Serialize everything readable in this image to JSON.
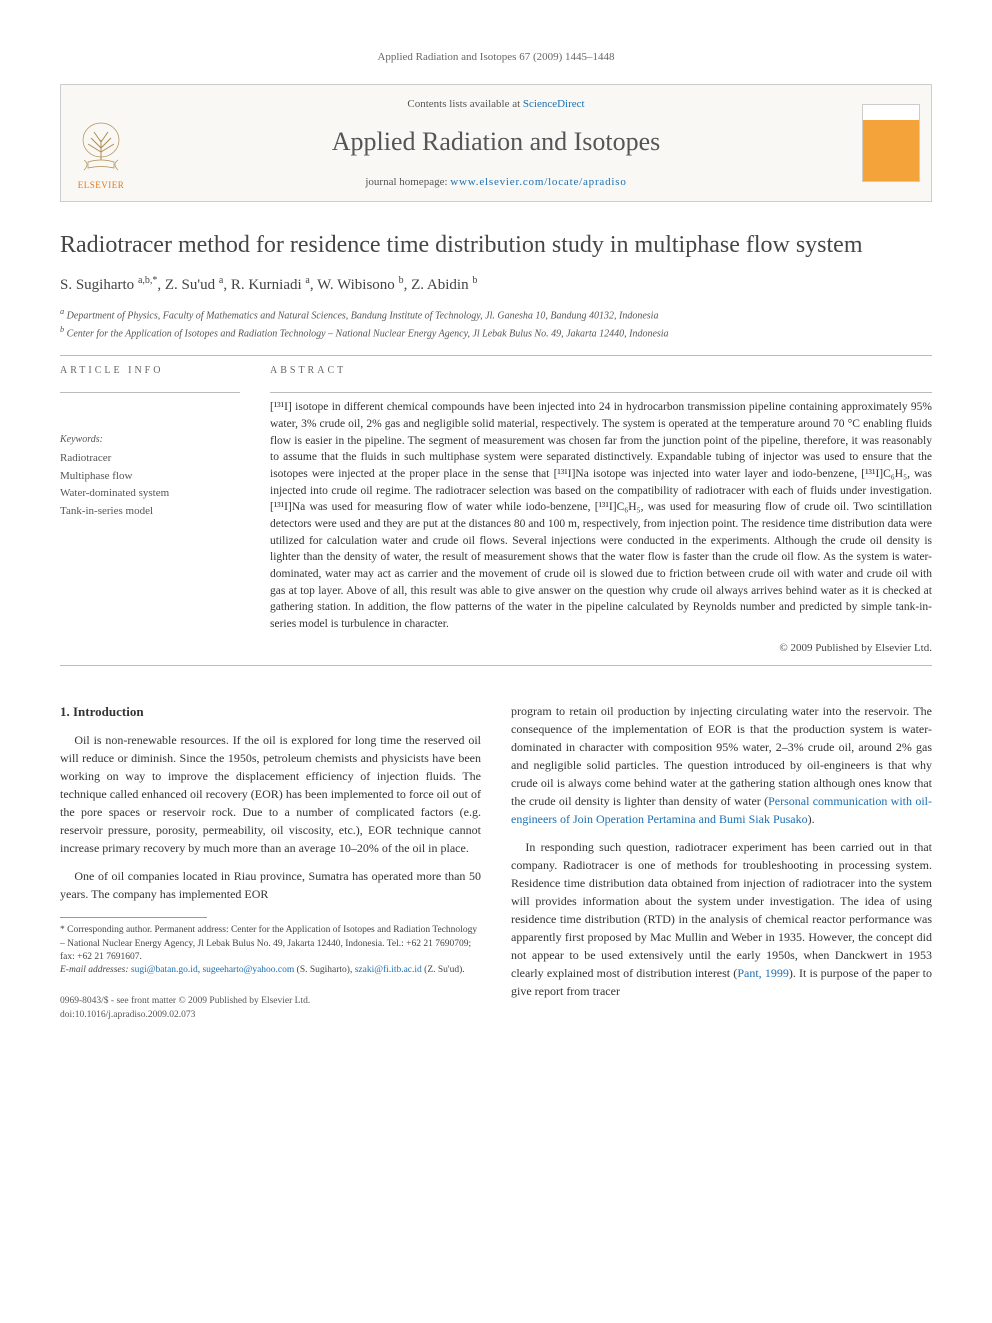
{
  "running_header": "Applied Radiation and Isotopes 67 (2009) 1445–1448",
  "masthead": {
    "contents_prefix": "Contents lists available at ",
    "contents_link": "ScienceDirect",
    "journal_name": "Applied Radiation and Isotopes",
    "homepage_prefix": "journal homepage: ",
    "homepage_url": "www.elsevier.com/locate/apradiso",
    "publisher_label": "ELSEVIER",
    "cover_caption": "Applied Radiation and Isotopes"
  },
  "title": "Radiotracer method for residence time distribution study in multiphase flow system",
  "authors_html": "S. Sugiharto <sup>a,b,*</sup>, Z. Su'ud <sup>a</sup>, R. Kurniadi <sup>a</sup>, W. Wibisono <sup>b</sup>, Z. Abidin <sup>b</sup>",
  "affiliations": {
    "a": "Department of Physics, Faculty of Mathematics and Natural Sciences, Bandung Institute of Technology, Jl. Ganesha 10, Bandung 40132, Indonesia",
    "b": "Center for the Application of Isotopes and Radiation Technology – National Nuclear Energy Agency, Jl Lebak Bulus No. 49, Jakarta 12440, Indonesia"
  },
  "article_info_label": "ARTICLE INFO",
  "abstract_label": "ABSTRACT",
  "keywords_label": "Keywords:",
  "keywords": [
    "Radiotracer",
    "Multiphase flow",
    "Water-dominated system",
    "Tank-in-series model"
  ],
  "abstract_text": "[¹³¹I] isotope in different chemical compounds have been injected into 24 in hydrocarbon transmission pipeline containing approximately 95% water, 3% crude oil, 2% gas and negligible solid material, respectively. The system is operated at the temperature around 70 °C enabling fluids flow is easier in the pipeline. The segment of measurement was chosen far from the junction point of the pipeline, therefore, it was reasonably to assume that the fluids in such multiphase system were separated distinctively. Expandable tubing of injector was used to ensure that the isotopes were injected at the proper place in the sense that [¹³¹I]Na isotope was injected into water layer and iodo-benzene, [¹³¹I]C₆H₅, was injected into crude oil regime. The radiotracer selection was based on the compatibility of radiotracer with each of fluids under investigation. [¹³¹I]Na was used for measuring flow of water while iodo-benzene, [¹³¹I]C₆H₅, was used for measuring flow of crude oil. Two scintillation detectors were used and they are put at the distances 80 and 100 m, respectively, from injection point. The residence time distribution data were utilized for calculation water and crude oil flows. Several injections were conducted in the experiments. Although the crude oil density is lighter than the density of water, the result of measurement shows that the water flow is faster than the crude oil flow. As the system is water-dominated, water may act as carrier and the movement of crude oil is slowed due to friction between crude oil with water and crude oil with gas at top layer. Above of all, this result was able to give answer on the question why crude oil always arrives behind water as it is checked at gathering station. In addition, the flow patterns of the water in the pipeline calculated by Reynolds number and predicted by simple tank-in-series model is turbulence in character.",
  "copyright": "© 2009 Published by Elsevier Ltd.",
  "introduction": {
    "heading": "1. Introduction",
    "p1": "Oil is non-renewable resources. If the oil is explored for long time the reserved oil will reduce or diminish. Since the 1950s, petroleum chemists and physicists have been working on way to improve the displacement efficiency of injection fluids. The technique called enhanced oil recovery (EOR) has been implemented to force oil out of the pore spaces or reservoir rock. Due to a number of complicated factors (e.g. reservoir pressure, porosity, permeability, oil viscosity, etc.), EOR technique cannot increase primary recovery by much more than an average 10–20% of the oil in place.",
    "p2": "One of oil companies located in Riau province, Sumatra has operated more than 50 years. The company has implemented EOR",
    "p3_prefix": "program to retain oil production by injecting circulating water into the reservoir. The consequence of the implementation of EOR is that the production system is water-dominated in character with composition 95% water, 2–3% crude oil, around 2% gas and negligible solid particles. The question introduced by oil-engineers is that why crude oil is always come behind water at the gathering station although ones know that the crude oil density is lighter than density of water (",
    "p3_link": "Personal communication with oil-engineers of Join Operation Pertamina and Bumi Siak Pusako",
    "p3_suffix": ").",
    "p4_prefix": "In responding such question, radiotracer experiment has been carried out in that company. Radiotracer is one of methods for troubleshooting in processing system. Residence time distribution data obtained from injection of radiotracer into the system will provides information about the system under investigation. The idea of using residence time distribution (RTD) in the analysis of chemical reactor performance was apparently first proposed by Mac Mullin and Weber in 1935. However, the concept did not appear to be used extensively until the early 1950s, when Danckwert in 1953 clearly explained most of distribution interest (",
    "p4_link": "Pant, 1999",
    "p4_suffix": "). It is purpose of the paper to give report from tracer"
  },
  "footnote": {
    "corresponding": "* Corresponding author. Permanent address: Center for the Application of Isotopes and Radiation Technology – National Nuclear Energy Agency, Jl Lebak Bulus No. 49, Jakarta 12440, Indonesia. Tel.: +62 21 7690709; fax: +62 21 7691607.",
    "email_label": "E-mail addresses: ",
    "email1": "sugi@batan.go.id",
    "email2": "sugeeharto@yahoo.com",
    "email_paren1": " (S. Sugiharto), ",
    "email3": "szaki@fi.itb.ac.id",
    "email_paren2": " (Z. Su'ud)."
  },
  "footer": {
    "issn": "0969-8043/$ - see front matter © 2009 Published by Elsevier Ltd.",
    "doi": "doi:10.1016/j.apradiso.2009.02.073"
  },
  "colors": {
    "link": "#1b6fb3",
    "elsevier_orange": "#e67817",
    "text": "#333333",
    "muted": "#666666",
    "rule": "#bbbbbb"
  }
}
